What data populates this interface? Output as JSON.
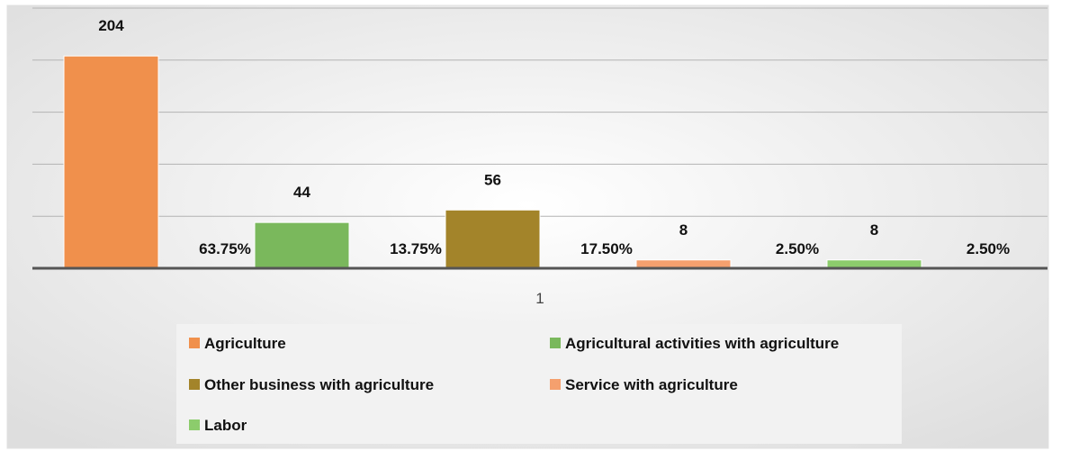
{
  "chart_data": {
    "type": "bar",
    "categories": [
      "1"
    ],
    "series": [
      {
        "name": "Agriculture",
        "values": [
          204
        ],
        "percent_label": "63.75%",
        "color": "#f0904c"
      },
      {
        "name": "Agricultural activities with agriculture",
        "values": [
          44
        ],
        "percent_label": "13.75%",
        "color": "#7ab85c"
      },
      {
        "name": "Other business with agriculture",
        "values": [
          56
        ],
        "percent_label": "17.50%",
        "color": "#a3842a"
      },
      {
        "name": "Service with agriculture",
        "values": [
          8
        ],
        "percent_label": "2.50%",
        "color": "#f5a06e"
      },
      {
        "name": "Labor",
        "values": [
          8
        ],
        "percent_label": "2.50%",
        "color": "#8ccc6c"
      }
    ],
    "ylim": [
      0,
      250
    ],
    "grid": true,
    "yaxis_labels_shown": false,
    "legend_position": "bottom"
  },
  "colors": {
    "background_center": "#ffffff",
    "background_edge": "#dedede",
    "gridline": "#b3b3b3",
    "axis": "#555555",
    "legend_box": "#f2f2f2"
  }
}
